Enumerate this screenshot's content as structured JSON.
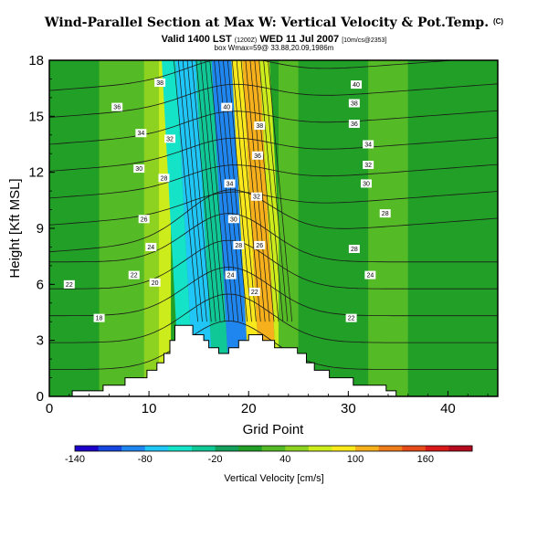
{
  "title": {
    "main": "Wind-Parallel Section at Max W: Vertical Velocity & Pot.Temp.",
    "main_sup": "(C)",
    "valid_pre": "Valid 1400 LST",
    "valid_small1": "(1200Z)",
    "valid_mid": "WED 11 Jul 2007",
    "valid_small2": "[10m/cs@2353]",
    "sub": "box Wmax=59@ 33.88,20.09,1986m"
  },
  "chart_data": {
    "type": "heatmap",
    "xlabel": "Grid Point",
    "ylabel": "Height [Kft MSL]",
    "xlim": [
      0,
      45
    ],
    "ylim": [
      0,
      18
    ],
    "xticks": [
      "0",
      "10",
      "20",
      "30",
      "40"
    ],
    "yticks": [
      "0",
      "3",
      "6",
      "9",
      "12",
      "15",
      "18"
    ],
    "colorbar": {
      "label": "Vertical Velocity [cm/s]",
      "range": [
        -140,
        200
      ],
      "ticks": [
        "-140",
        "-80",
        "-20",
        "40",
        "100",
        "160"
      ],
      "colors": [
        "#1c00c8",
        "#1546de",
        "#1f86f0",
        "#1fc6f6",
        "#14e3c8",
        "#10c896",
        "#12a05a",
        "#229f26",
        "#54ba25",
        "#8ed221",
        "#ccec1c",
        "#f8e81c",
        "#f6b01c",
        "#ef7c1a",
        "#e54c19",
        "#d7191a",
        "#b50a1e"
      ]
    },
    "fill_bands": [
      {
        "x": [
          0,
          5
        ],
        "w": 10,
        "color": "#229f26"
      },
      {
        "x": [
          5,
          9.5
        ],
        "w": 20,
        "color": "#54ba25"
      },
      {
        "x": [
          9.5,
          11
        ],
        "w": 40,
        "color": "#8ed221"
      },
      {
        "x": [
          11,
          12.2
        ],
        "w": 60,
        "color": "#ccec1c"
      },
      {
        "x": [
          12.2,
          13.6
        ],
        "w": -20,
        "color": "#14e3c8"
      },
      {
        "x": [
          13.6,
          15.6
        ],
        "w": -60,
        "color": "#1fc6f6"
      },
      {
        "x": [
          15.6,
          17.2
        ],
        "w": -20,
        "color": "#10c896"
      },
      {
        "x": [
          17.2,
          19.2
        ],
        "w": -80,
        "color": "#1f86f0"
      },
      {
        "x": [
          19.2,
          20.3
        ],
        "w": 100,
        "color": "#f8e81c"
      },
      {
        "x": [
          20.3,
          22.0
        ],
        "w": 140,
        "color": "#f6b01c"
      },
      {
        "x": [
          22.0,
          23.0
        ],
        "w": 60,
        "color": "#ccec1c"
      },
      {
        "x": [
          23.0,
          25.0
        ],
        "w": 20,
        "color": "#54ba25"
      },
      {
        "x": [
          25.0,
          32.0
        ],
        "w": 10,
        "color": "#229f26"
      },
      {
        "x": [
          32.0,
          36.0
        ],
        "w": 20,
        "color": "#54ba25"
      },
      {
        "x": [
          36.0,
          45.0
        ],
        "w": 10,
        "color": "#229f26"
      }
    ],
    "terrain": [
      [
        0,
        0
      ],
      [
        2.3,
        0
      ],
      [
        2.3,
        0.3
      ],
      [
        5.4,
        0.3
      ],
      [
        5.4,
        0.6
      ],
      [
        7.6,
        0.6
      ],
      [
        7.6,
        1.0
      ],
      [
        9.8,
        1.0
      ],
      [
        9.8,
        1.4
      ],
      [
        10.8,
        1.4
      ],
      [
        10.8,
        1.8
      ],
      [
        11.5,
        1.8
      ],
      [
        11.5,
        2.3
      ],
      [
        12.1,
        2.3
      ],
      [
        12.1,
        3.0
      ],
      [
        12.6,
        3.0
      ],
      [
        12.6,
        3.8
      ],
      [
        14.4,
        3.8
      ],
      [
        14.4,
        3.3
      ],
      [
        15.5,
        3.3
      ],
      [
        15.5,
        3.0
      ],
      [
        16.0,
        3.0
      ],
      [
        16.0,
        2.6
      ],
      [
        17.0,
        2.6
      ],
      [
        17.0,
        2.3
      ],
      [
        18.0,
        2.3
      ],
      [
        18.0,
        2.6
      ],
      [
        19.0,
        2.6
      ],
      [
        19.0,
        3.0
      ],
      [
        20.0,
        3.0
      ],
      [
        20.0,
        3.3
      ],
      [
        21.4,
        3.3
      ],
      [
        21.4,
        3.0
      ],
      [
        22.6,
        3.0
      ],
      [
        22.6,
        2.6
      ],
      [
        24.9,
        2.6
      ],
      [
        24.9,
        2.3
      ],
      [
        25.8,
        2.3
      ],
      [
        25.8,
        1.8
      ],
      [
        26.6,
        1.8
      ],
      [
        26.6,
        1.4
      ],
      [
        28.1,
        1.4
      ],
      [
        28.1,
        1.0
      ],
      [
        30.5,
        1.0
      ],
      [
        30.5,
        0.6
      ],
      [
        33.8,
        0.6
      ],
      [
        33.8,
        0.3
      ],
      [
        34.8,
        0.3
      ],
      [
        34.8,
        0
      ],
      [
        45,
        0
      ]
    ],
    "theta_levels": [
      {
        "value": 18,
        "label": "18"
      },
      {
        "value": 20,
        "label": "20"
      },
      {
        "value": 22,
        "label": "22"
      },
      {
        "value": 24,
        "label": "24"
      },
      {
        "value": 26,
        "label": "26"
      },
      {
        "value": 28,
        "label": "28"
      },
      {
        "value": 30,
        "label": "30"
      },
      {
        "value": 32,
        "label": "32"
      },
      {
        "value": 34,
        "label": "34"
      },
      {
        "value": 36,
        "label": "36"
      },
      {
        "value": 38,
        "label": "38"
      },
      {
        "value": 40,
        "label": "40"
      }
    ],
    "contour_labels": [
      {
        "x": 2.0,
        "y": 6.0,
        "text": "22"
      },
      {
        "x": 5.0,
        "y": 4.2,
        "text": "18"
      },
      {
        "x": 8.5,
        "y": 6.5,
        "text": "22"
      },
      {
        "x": 10.6,
        "y": 6.1,
        "text": "20"
      },
      {
        "x": 10.2,
        "y": 8.0,
        "text": "24"
      },
      {
        "x": 9.5,
        "y": 9.5,
        "text": "26"
      },
      {
        "x": 11.5,
        "y": 11.7,
        "text": "28"
      },
      {
        "x": 9.0,
        "y": 12.2,
        "text": "30"
      },
      {
        "x": 9.2,
        "y": 14.1,
        "text": "34"
      },
      {
        "x": 6.8,
        "y": 15.5,
        "text": "36"
      },
      {
        "x": 11.1,
        "y": 16.8,
        "text": "38"
      },
      {
        "x": 12.1,
        "y": 13.8,
        "text": "32"
      },
      {
        "x": 17.8,
        "y": 15.5,
        "text": "40"
      },
      {
        "x": 21.1,
        "y": 14.5,
        "text": "38"
      },
      {
        "x": 20.9,
        "y": 12.9,
        "text": "36"
      },
      {
        "x": 18.1,
        "y": 11.4,
        "text": "34"
      },
      {
        "x": 20.8,
        "y": 10.7,
        "text": "32"
      },
      {
        "x": 18.5,
        "y": 9.5,
        "text": "30"
      },
      {
        "x": 19.0,
        "y": 8.1,
        "text": "28"
      },
      {
        "x": 21.1,
        "y": 8.1,
        "text": "26"
      },
      {
        "x": 18.2,
        "y": 6.5,
        "text": "24"
      },
      {
        "x": 20.6,
        "y": 5.6,
        "text": "22"
      },
      {
        "x": 30.8,
        "y": 16.7,
        "text": "40"
      },
      {
        "x": 30.6,
        "y": 15.7,
        "text": "38"
      },
      {
        "x": 30.6,
        "y": 14.6,
        "text": "36"
      },
      {
        "x": 32.0,
        "y": 13.5,
        "text": "34"
      },
      {
        "x": 32.0,
        "y": 12.4,
        "text": "32"
      },
      {
        "x": 31.8,
        "y": 11.4,
        "text": "30"
      },
      {
        "x": 33.7,
        "y": 9.8,
        "text": "28"
      },
      {
        "x": 30.6,
        "y": 7.9,
        "text": "28"
      },
      {
        "x": 32.2,
        "y": 6.5,
        "text": "24"
      },
      {
        "x": 30.3,
        "y": 4.2,
        "text": "22"
      }
    ]
  }
}
